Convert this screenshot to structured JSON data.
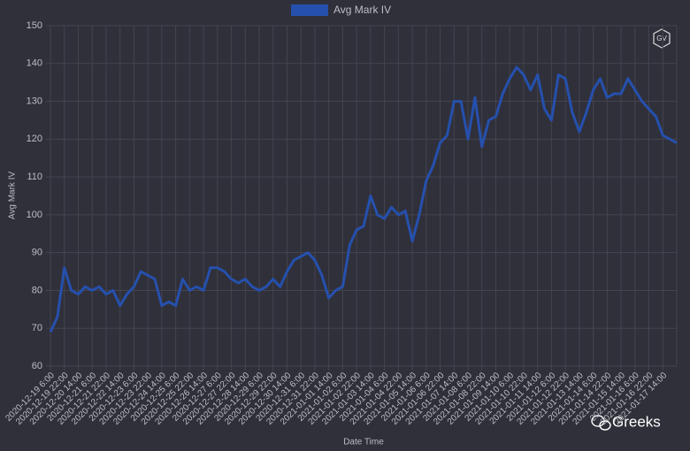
{
  "chart_data": {
    "type": "line",
    "legend": "top",
    "grid": true,
    "series": [
      {
        "name": "Avg Mark IV",
        "color": "#2550ad",
        "values": [
          69,
          73,
          86,
          80,
          79,
          81,
          80,
          81,
          79,
          80,
          76,
          79,
          81,
          85,
          84,
          83,
          76,
          77,
          76,
          83,
          80,
          81,
          80,
          86,
          86,
          85,
          83,
          82,
          83,
          81,
          80,
          81,
          83,
          81,
          85,
          88,
          89,
          90,
          88,
          84,
          78,
          80,
          81,
          92,
          96,
          97,
          105,
          100,
          99,
          102,
          100,
          101,
          93,
          100,
          109,
          113,
          119,
          121,
          130,
          130,
          120,
          131,
          118,
          125,
          126,
          132,
          136,
          139,
          137,
          133,
          137,
          128,
          125,
          137,
          136,
          127,
          122,
          127,
          133,
          136,
          131,
          132,
          132,
          136,
          133,
          130,
          128,
          126,
          121,
          120,
          119
        ]
      }
    ],
    "categories": [
      "2020-12-19 6:00",
      null,
      "2020-12-19 22:00",
      null,
      "2020-12-20 14:00",
      null,
      "2020-12-21 6:00",
      null,
      "2020-12-21 22:00",
      null,
      "2020-12-22 14:00",
      null,
      "2020-12-23 6:00",
      null,
      "2020-12-23 22:00",
      null,
      "2020-12-24 14:00",
      null,
      "2020-12-25 6:00",
      null,
      "2020-12-25 22:00",
      null,
      "2020-12-26 14:00",
      null,
      "2020-12-27 6:00",
      null,
      "2020-12-27 22:00",
      null,
      "2020-12-28 14:00",
      null,
      "2020-12-29 6:00",
      null,
      "2020-12-29 22:00",
      null,
      "2020-12-30 14:00",
      null,
      "2020-12-31 6:00",
      null,
      "2020-12-31 22:00",
      null,
      "2021-01-01 14:00",
      null,
      "2021-01-02 6:00",
      null,
      "2021-01-02 22:00",
      null,
      "2021-01-03 14:00",
      null,
      "2021-01-04 6:00",
      null,
      "2021-01-04 22:00",
      null,
      "2021-01-05 14:00",
      null,
      "2021-01-06 6:00",
      null,
      "2021-01-06 22:00",
      null,
      "2021-01-07 14:00",
      null,
      "2021-01-08 6:00",
      null,
      "2021-01-08 22:00",
      null,
      "2021-01-09 14:00",
      null,
      "2021-01-10 6:00",
      null,
      "2021-01-10 22:00",
      null,
      "2021-01-11 14:00",
      null,
      "2021-01-12 6:00",
      null,
      "2021-01-12 22:00",
      null,
      "2021-01-13 14:00",
      null,
      "2021-01-14 6:00",
      null,
      "2021-01-14 22:00",
      null,
      "2021-01-15 14:00",
      null,
      "2021-01-16 6:00",
      null,
      "2021-01-16 22:00",
      null,
      "2021-01-17 14:00",
      null,
      null
    ],
    "ylim": [
      60,
      150
    ],
    "yticks": [
      60,
      70,
      80,
      90,
      100,
      110,
      120,
      130,
      140,
      150
    ],
    "y_label": "Avg Mark IV",
    "x_label": "Date Time"
  },
  "logo": "GV",
  "watermark": "Greeks"
}
